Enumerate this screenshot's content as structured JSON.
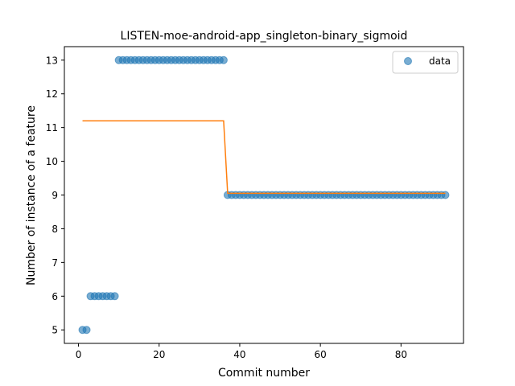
{
  "chart_data": {
    "type": "scatter",
    "title": "LISTEN-moe-android-app_singleton-binary_sigmoid",
    "xlabel": "Commit number",
    "ylabel": "Number of instance of a feature",
    "xlim": [
      -3.5,
      95.5
    ],
    "ylim": [
      4.6,
      13.4
    ],
    "xticks": [
      0,
      20,
      40,
      60,
      80
    ],
    "yticks": [
      5,
      6,
      7,
      8,
      9,
      10,
      11,
      12,
      13
    ],
    "grid": false,
    "legend": {
      "placement": "top-right",
      "entries": [
        "data"
      ]
    },
    "series": [
      {
        "name": "data",
        "kind": "scatter",
        "color": "#1f77b4",
        "points": [
          [
            1,
            5
          ],
          [
            2,
            5
          ],
          [
            3,
            6
          ],
          [
            4,
            6
          ],
          [
            5,
            6
          ],
          [
            6,
            6
          ],
          [
            7,
            6
          ],
          [
            8,
            6
          ],
          [
            9,
            6
          ],
          [
            10,
            13
          ],
          [
            11,
            13
          ],
          [
            12,
            13
          ],
          [
            13,
            13
          ],
          [
            14,
            13
          ],
          [
            15,
            13
          ],
          [
            16,
            13
          ],
          [
            17,
            13
          ],
          [
            18,
            13
          ],
          [
            19,
            13
          ],
          [
            20,
            13
          ],
          [
            21,
            13
          ],
          [
            22,
            13
          ],
          [
            23,
            13
          ],
          [
            24,
            13
          ],
          [
            25,
            13
          ],
          [
            26,
            13
          ],
          [
            27,
            13
          ],
          [
            28,
            13
          ],
          [
            29,
            13
          ],
          [
            30,
            13
          ],
          [
            31,
            13
          ],
          [
            32,
            13
          ],
          [
            33,
            13
          ],
          [
            34,
            13
          ],
          [
            35,
            13
          ],
          [
            36,
            13
          ],
          [
            37,
            9
          ],
          [
            38,
            9
          ],
          [
            39,
            9
          ],
          [
            40,
            9
          ],
          [
            41,
            9
          ],
          [
            42,
            9
          ],
          [
            43,
            9
          ],
          [
            44,
            9
          ],
          [
            45,
            9
          ],
          [
            46,
            9
          ],
          [
            47,
            9
          ],
          [
            48,
            9
          ],
          [
            49,
            9
          ],
          [
            50,
            9
          ],
          [
            51,
            9
          ],
          [
            52,
            9
          ],
          [
            53,
            9
          ],
          [
            54,
            9
          ],
          [
            55,
            9
          ],
          [
            56,
            9
          ],
          [
            57,
            9
          ],
          [
            58,
            9
          ],
          [
            59,
            9
          ],
          [
            60,
            9
          ],
          [
            61,
            9
          ],
          [
            62,
            9
          ],
          [
            63,
            9
          ],
          [
            64,
            9
          ],
          [
            65,
            9
          ],
          [
            66,
            9
          ],
          [
            67,
            9
          ],
          [
            68,
            9
          ],
          [
            69,
            9
          ],
          [
            70,
            9
          ],
          [
            71,
            9
          ],
          [
            72,
            9
          ],
          [
            73,
            9
          ],
          [
            74,
            9
          ],
          [
            75,
            9
          ],
          [
            76,
            9
          ],
          [
            77,
            9
          ],
          [
            78,
            9
          ],
          [
            79,
            9
          ],
          [
            80,
            9
          ],
          [
            81,
            9
          ],
          [
            82,
            9
          ],
          [
            83,
            9
          ],
          [
            84,
            9
          ],
          [
            85,
            9
          ],
          [
            86,
            9
          ],
          [
            87,
            9
          ],
          [
            88,
            9
          ],
          [
            89,
            9
          ],
          [
            90,
            9
          ],
          [
            91,
            9
          ]
        ]
      },
      {
        "kind": "line",
        "color": "#ff7f0e",
        "points": [
          [
            1,
            11.2
          ],
          [
            36,
            11.2
          ],
          [
            37,
            9.05
          ],
          [
            91,
            9.05
          ]
        ]
      }
    ]
  }
}
